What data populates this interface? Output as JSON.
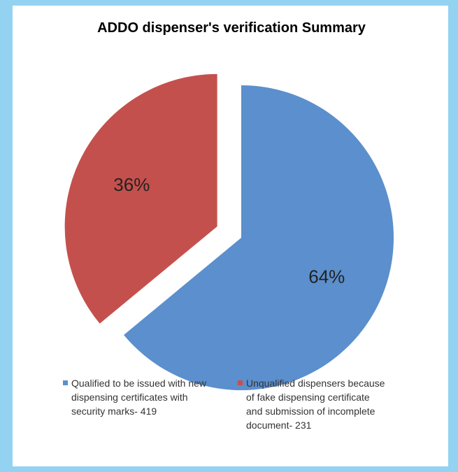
{
  "chart_data": {
    "type": "pie",
    "title": "ADDO dispenser's verification Summary",
    "categories": [
      "Qualified to be issued with new dispensing certificates with security marks- 419",
      "Unqualified dispensers because of fake dispensing certificate and submission of incomplete document- 231"
    ],
    "values": [
      64,
      36
    ],
    "value_labels": [
      "64%",
      "36%"
    ],
    "colors": [
      "#5b8fcd",
      "#c4504d"
    ],
    "legend": "bottom"
  }
}
